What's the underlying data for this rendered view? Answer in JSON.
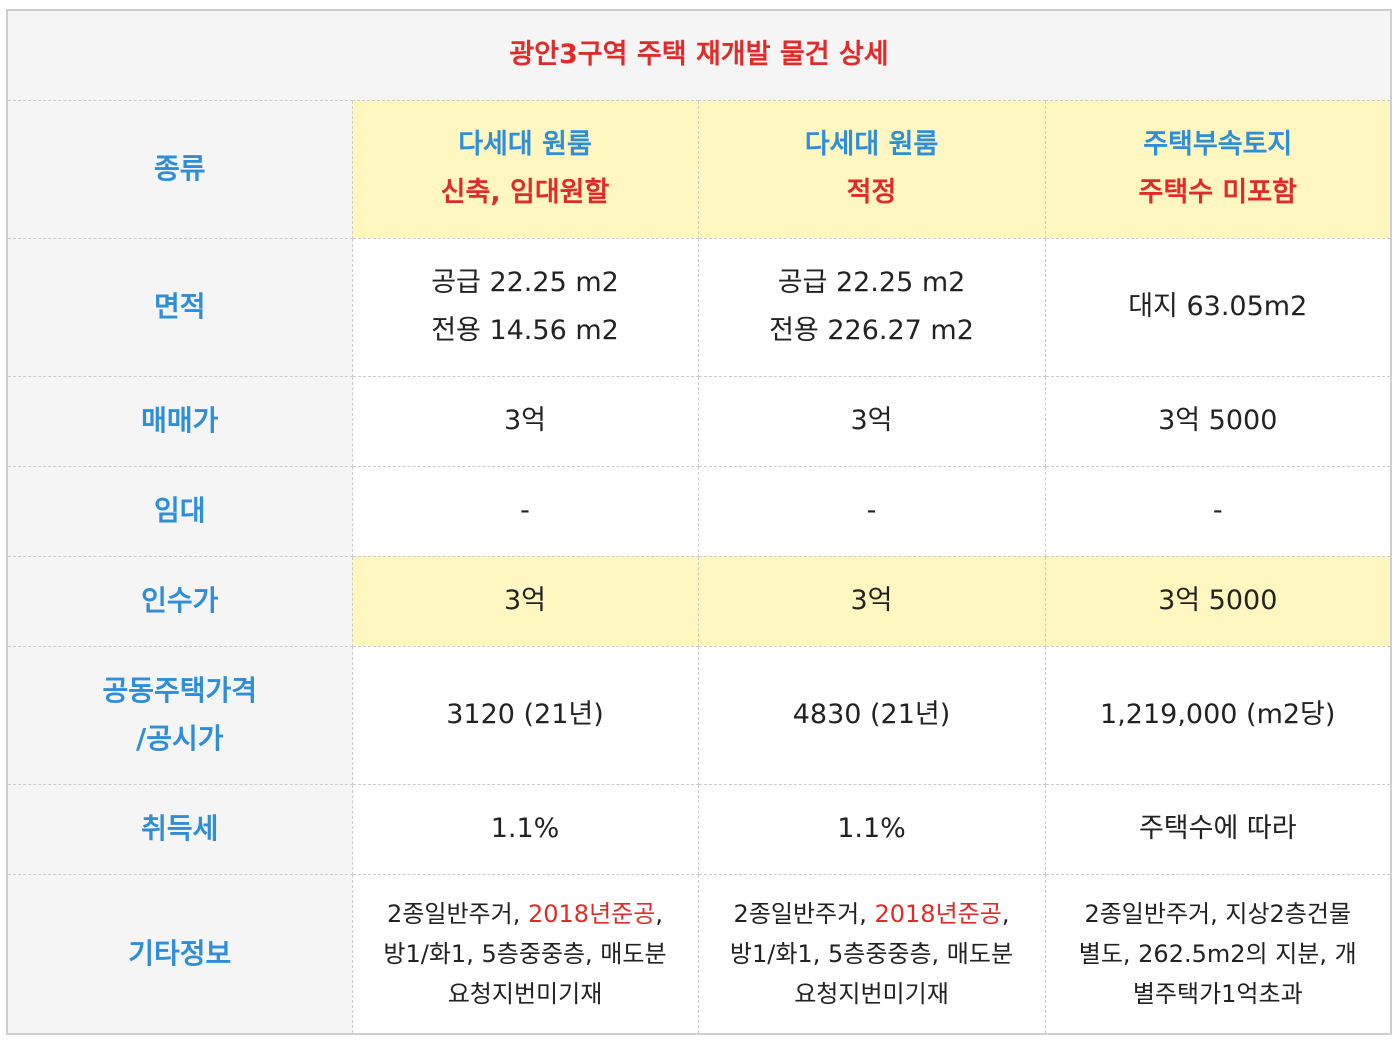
{
  "title": "광안3구역 주택 재개발 물건 상세",
  "rows": {
    "type": {
      "label": "종류",
      "cols": [
        {
          "line1": "다세대 원룸",
          "line2": "신축, 임대원할"
        },
        {
          "line1": "다세대 원룸",
          "line2": "적정"
        },
        {
          "line1": "주택부속토지",
          "line2": "주택수 미포함"
        }
      ]
    },
    "area": {
      "label": "면적",
      "cols": [
        {
          "line1": "공급 22.25 m2",
          "line2": "전용 14.56 m2"
        },
        {
          "line1": "공급 22.25 m2",
          "line2": "전용 226.27 m2"
        },
        {
          "line1": "대지 63.05m2"
        }
      ]
    },
    "price": {
      "label": "매매가",
      "cols": [
        "3억",
        "3억",
        "3억 5000"
      ]
    },
    "rent": {
      "label": "임대",
      "cols": [
        "-",
        "-",
        "-"
      ]
    },
    "acquire": {
      "label": "인수가",
      "cols": [
        "3억",
        "3억",
        "3억 5000"
      ]
    },
    "official": {
      "label_line1": "공동주택가격",
      "label_line2": "/공시가",
      "cols": [
        "3120 (21년)",
        "4830 (21년)",
        "1,219,000 (m2당)"
      ]
    },
    "tax": {
      "label": "취득세",
      "cols": [
        "1.1%",
        "1.1%",
        "주택수에 따라"
      ]
    },
    "etc": {
      "label": "기타정보",
      "cols": [
        {
          "pre": "2종일반주거, ",
          "red": "2018년준공",
          "post": ",",
          "line2": "방1/화1, 5층중중층, 매도분",
          "line3": "요청지번미기재"
        },
        {
          "pre": "2종일반주거, ",
          "red": "2018년준공",
          "post": ",",
          "line2": "방1/화1, 5층중중층, 매도분",
          "line3": "요청지번미기재"
        },
        {
          "line1": "2종일반주거, 지상2층건물",
          "line2": "별도, 262.5m2의 지분, 개",
          "line3": "별주택가1억초과"
        }
      ]
    }
  },
  "colors": {
    "label_blue": "#2f8ed8",
    "accent_red": "#e02b2b",
    "highlight_yellow": "#fff6c0",
    "label_bg": "#f5f5f5"
  }
}
